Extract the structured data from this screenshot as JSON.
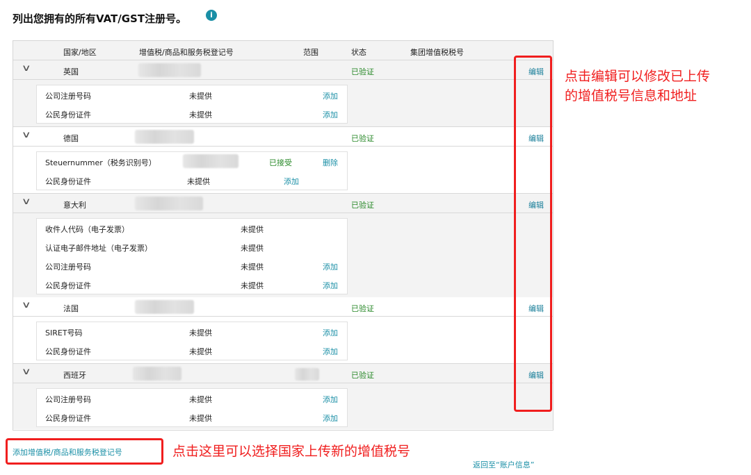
{
  "title": "列出您拥有的所有VAT/GST注册号。",
  "info_icon": "info-icon",
  "columns": [
    "国家/地区",
    "增值税/商品和服务税登记号",
    "范围",
    "状态",
    "集团增值税税号"
  ],
  "sections": [
    {
      "country": "英国",
      "status": "已验证",
      "edit": "编辑",
      "details": [
        {
          "label": "公司注册号码",
          "value": "未提供",
          "action": "添加"
        },
        {
          "label": "公民身份证件",
          "value": "未提供",
          "action": "添加"
        }
      ]
    },
    {
      "country": "德国",
      "status": "已验证",
      "edit": "编辑",
      "details": [
        {
          "label": "Steuernummer（税务识别号）",
          "value": "",
          "state": "已接受",
          "action": "删除"
        },
        {
          "label": "公民身份证件",
          "value": "未提供",
          "action": "添加"
        }
      ]
    },
    {
      "country": "意大利",
      "status": "已验证",
      "edit": "编辑",
      "details": [
        {
          "label": "收件人代码（电子发票）",
          "value": "未提供"
        },
        {
          "label": "认证电子邮件地址（电子发票）",
          "value": "未提供"
        },
        {
          "label": "公司注册号码",
          "value": "未提供",
          "action": "添加"
        },
        {
          "label": "公民身份证件",
          "value": "未提供",
          "action": "添加"
        }
      ]
    },
    {
      "country": "法国",
      "status": "已验证",
      "edit": "编辑",
      "details": [
        {
          "label": "SIRET号码",
          "value": "未提供",
          "action": "添加"
        },
        {
          "label": "公民身份证件",
          "value": "未提供",
          "action": "添加"
        }
      ]
    },
    {
      "country": "西班牙",
      "status": "已验证",
      "edit": "编辑",
      "details": [
        {
          "label": "公司注册号码",
          "value": "未提供",
          "action": "添加"
        },
        {
          "label": "公民身份证件",
          "value": "未提供",
          "action": "添加"
        }
      ]
    }
  ],
  "add_link": "添加增值税/商品和服务税登记号",
  "back_link": "返回至“账户信息”",
  "annotations": {
    "edit_note_1": "点击编辑可以修改已上传",
    "edit_note_2": "的增值税号信息和地址",
    "add_note": "点击这里可以选择国家上传新的增值税号"
  },
  "colors": {
    "link": "#1a8fa6",
    "verified": "#2b8a2b",
    "annotation": "#f01e1e"
  }
}
